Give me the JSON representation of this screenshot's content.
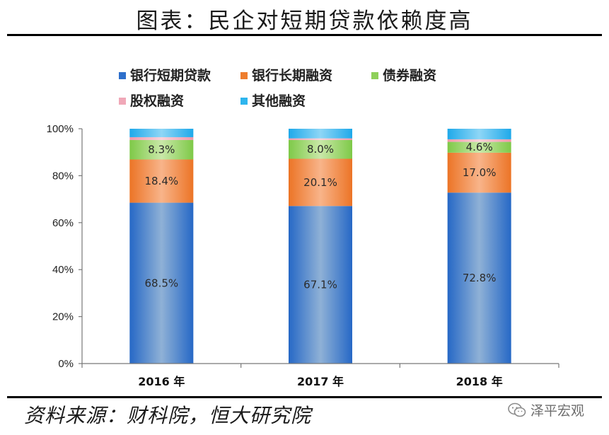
{
  "page": {
    "title": "图表：民企对短期贷款依赖度高",
    "source": "资料来源：财科院，恒大研究院",
    "watermark_text": "泽平宏观",
    "watermark_icon": "wechat-icon"
  },
  "chart_data": {
    "type": "bar",
    "stacked": true,
    "title": "",
    "xlabel": "",
    "ylabel": "",
    "ylim": [
      0,
      100
    ],
    "y_ticks": [
      "0%",
      "20%",
      "40%",
      "60%",
      "80%",
      "100%"
    ],
    "y_tick_values": [
      0,
      20,
      40,
      60,
      80,
      100
    ],
    "categories": [
      "2016 年",
      "2017 年",
      "2018 年"
    ],
    "legend_position": "top",
    "series": [
      {
        "name": "银行短期贷款",
        "color": "#2E6FCB",
        "values": [
          68.5,
          67.1,
          72.8
        ],
        "labels": [
          "68.5%",
          "67.1%",
          "72.8%"
        ]
      },
      {
        "name": "银行长期融资",
        "color": "#EE7D2E",
        "values": [
          18.4,
          20.1,
          17.0
        ],
        "labels": [
          "18.4%",
          "20.1%",
          "17.0%"
        ]
      },
      {
        "name": "债券融资",
        "color": "#8ED05A",
        "values": [
          8.3,
          8.0,
          4.6
        ],
        "labels": [
          "8.3%",
          "8.0%",
          "4.6%"
        ]
      },
      {
        "name": "股权融资",
        "color": "#F0A8B8",
        "values": [
          1.2,
          0.7,
          1.1
        ],
        "labels": [
          "",
          "",
          ""
        ]
      },
      {
        "name": "其他融资",
        "color": "#2EB5EE",
        "values": [
          3.6,
          4.1,
          4.5
        ],
        "labels": [
          "",
          "",
          ""
        ]
      }
    ],
    "grid": false
  }
}
